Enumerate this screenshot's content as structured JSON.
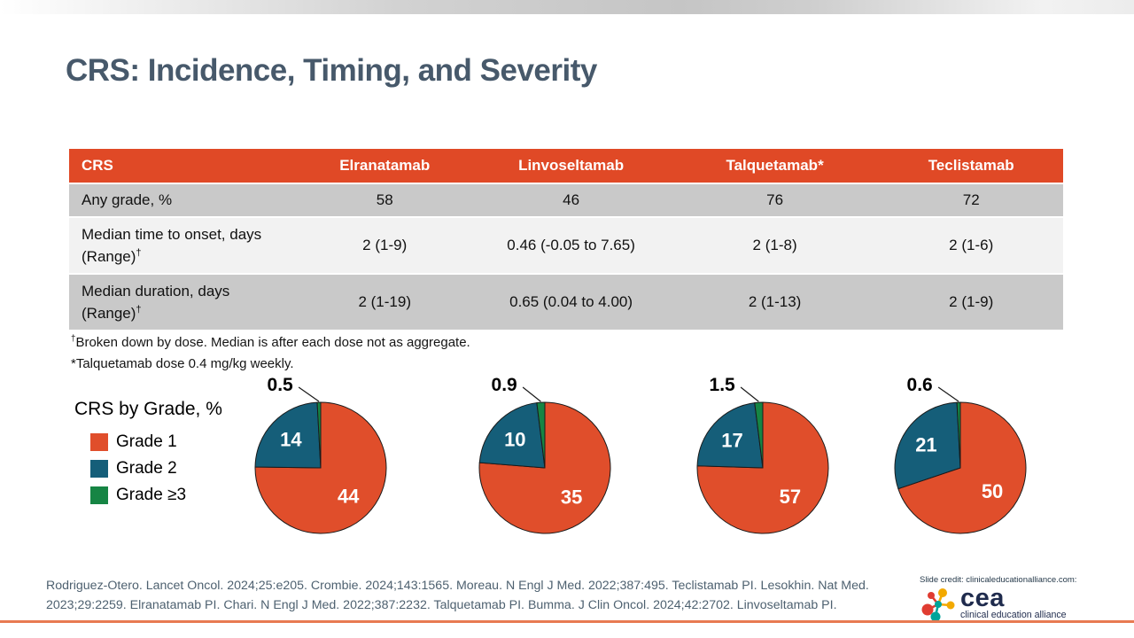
{
  "title": "CRS: Incidence, Timing, and Severity",
  "table": {
    "columns": [
      "CRS",
      "Elranatamab",
      "Linvoseltamab",
      "Talquetamab*",
      "Teclistamab"
    ],
    "rows": [
      {
        "label": "Any grade, %",
        "values": [
          "58",
          "46",
          "76",
          "72"
        ]
      },
      {
        "label": "Median time to onset, days (Range)†",
        "values": [
          "2 (1-9)",
          "0.46 (-0.05 to 7.65)",
          "2 (1-8)",
          "2 (1-6)"
        ]
      },
      {
        "label": "Median duration, days (Range)†",
        "values": [
          "2 (1-19)",
          "0.65 (0.04 to 4.00)",
          "2 (1-13)",
          "2 (1-9)"
        ]
      }
    ]
  },
  "footnotes": [
    "†Broken down by dose. Median is after each dose not as aggregate.",
    "*Talquetamab dose 0.4 mg/kg weekly."
  ],
  "chart_data": {
    "type": "pie",
    "title": "CRS by Grade, %",
    "legend_position": "left",
    "legend": [
      {
        "label": "Grade 1",
        "color": "#E04E2B"
      },
      {
        "label": "Grade 2",
        "color": "#155E79"
      },
      {
        "label": "Grade ≥3",
        "color": "#168544"
      }
    ],
    "pies": [
      {
        "drug": "Elranatamab",
        "values": [
          44,
          14,
          0.5
        ],
        "labels": [
          "44",
          "14",
          "0.5"
        ]
      },
      {
        "drug": "Linvoseltamab",
        "values": [
          35,
          10,
          0.9
        ],
        "labels": [
          "35",
          "10",
          "0.9"
        ]
      },
      {
        "drug": "Talquetamab",
        "values": [
          57,
          17,
          1.5
        ],
        "labels": [
          "57",
          "17",
          "1.5"
        ]
      },
      {
        "drug": "Teclistamab",
        "values": [
          50,
          21,
          0.6
        ],
        "labels": [
          "50",
          "21",
          "0.6"
        ]
      }
    ]
  },
  "references": [
    "Rodriguez-Otero. Lancet Oncol. 2024;25:e205. Crombie. 2024;143:1565. Moreau. N Engl J Med. 2022;387:495. Teclistamab PI. Lesokhin. Nat Med.",
    "2023;29:2259. Elranatamab PI. Chari. N Engl J Med. 2022;387:2232. Talquetamab PI. Bumma. J Clin Oncol. 2024;42:2702. Linvoseltamab PI."
  ],
  "credit": {
    "text": "Slide credit: clinicaleducationalliance.com:",
    "logo_text": "cea",
    "logo_subtext": "clinical education alliance"
  },
  "colors": {
    "header_orange": "#E04926",
    "row_gray": "#C9C9C9",
    "row_light": "#F2F2F2",
    "title_slate": "#47596B",
    "bottom_line": "#E87A52"
  }
}
